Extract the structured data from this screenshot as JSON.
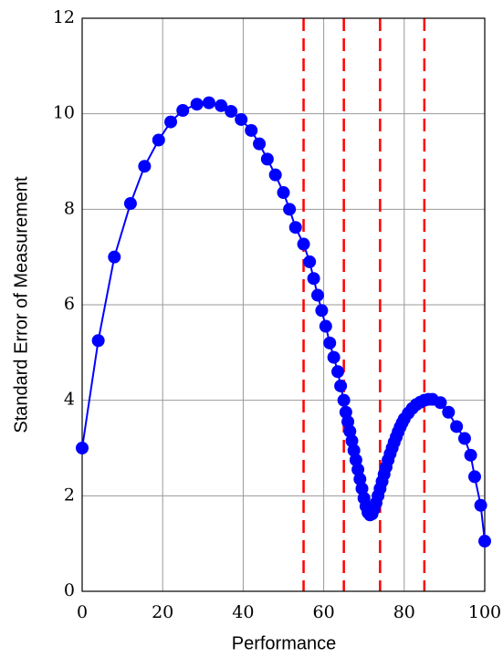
{
  "chart_data": {
    "type": "line",
    "xlabel": "Performance",
    "ylabel": "Standard Error of Measurement",
    "xlim": [
      0,
      100
    ],
    "xticks": [
      0,
      20,
      40,
      60,
      80,
      100
    ],
    "ylim": [
      0,
      12
    ],
    "yticks": [
      0,
      2,
      4,
      6,
      8,
      10,
      12
    ],
    "grid": true,
    "series": [
      {
        "color": "#0000ff",
        "marker": "circle",
        "x": [
          0,
          4,
          8,
          12,
          15.5,
          19,
          22,
          25,
          28.5,
          31.5,
          34.5,
          37,
          39.5,
          42,
          44,
          46,
          48,
          50,
          51.5,
          53,
          55,
          56.5,
          57.5,
          58.5,
          59.5,
          60.5,
          61.5,
          62.5,
          63.5,
          64.2,
          65,
          65.5,
          66,
          66.5,
          67,
          67.5,
          68,
          68.5,
          69,
          69.5,
          70,
          70.5,
          71,
          71.5,
          72,
          72.5,
          73,
          73.5,
          74,
          74.5,
          75,
          75.5,
          76,
          76.5,
          77,
          77.5,
          78,
          78.5,
          79,
          79.5,
          80,
          81,
          82,
          83,
          84,
          85,
          86,
          87,
          89,
          91,
          93,
          95,
          96.5,
          97.5,
          99,
          100
        ],
        "values": [
          3.0,
          5.25,
          7.0,
          8.12,
          8.9,
          9.45,
          9.83,
          10.07,
          10.2,
          10.23,
          10.17,
          10.05,
          9.88,
          9.65,
          9.37,
          9.05,
          8.72,
          8.35,
          8.0,
          7.62,
          7.27,
          6.9,
          6.55,
          6.2,
          5.88,
          5.55,
          5.2,
          4.9,
          4.6,
          4.3,
          4.0,
          3.75,
          3.55,
          3.35,
          3.15,
          2.95,
          2.75,
          2.55,
          2.35,
          2.15,
          1.95,
          1.78,
          1.65,
          1.6,
          1.62,
          1.72,
          1.85,
          2.0,
          2.15,
          2.3,
          2.45,
          2.6,
          2.75,
          2.88,
          3.0,
          3.12,
          3.23,
          3.34,
          3.44,
          3.53,
          3.61,
          3.73,
          3.83,
          3.91,
          3.96,
          4.0,
          4.02,
          4.02,
          3.95,
          3.75,
          3.45,
          3.2,
          2.85,
          2.4,
          1.8,
          1.05
        ]
      }
    ],
    "vlines": {
      "color": "#ff0000",
      "x": [
        55,
        65,
        74,
        85
      ]
    }
  }
}
